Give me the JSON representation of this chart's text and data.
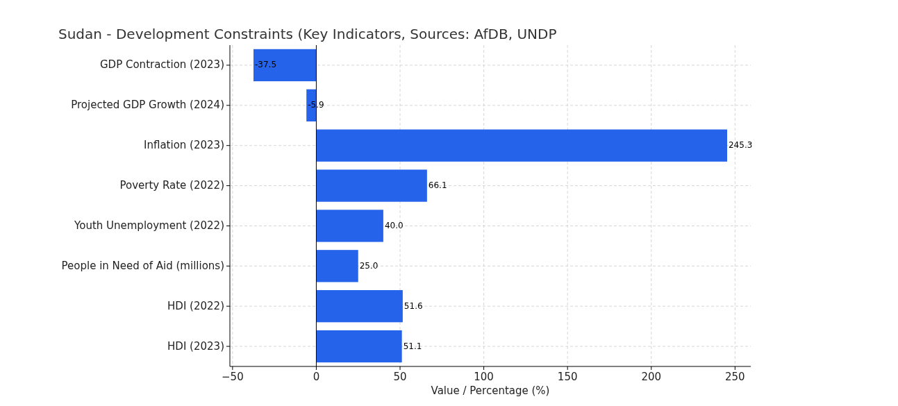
{
  "chart_data": {
    "type": "bar",
    "orientation": "horizontal",
    "title": "Sudan - Development Constraints (Key Indicators, Sources: AfDB, UNDP",
    "xlabel": "Value / Percentage (%)",
    "categories": [
      "GDP Contraction (2023)",
      "Projected GDP Growth (2024)",
      "Inflation (2023)",
      "Poverty Rate (2022)",
      "Youth Unemployment (2022)",
      "People in Need of Aid (millions)",
      "HDI (2022)",
      "HDI (2023)"
    ],
    "values": [
      -37.5,
      -5.9,
      245.3,
      66.1,
      40.0,
      25.0,
      51.6,
      51.1
    ],
    "value_labels": [
      "-37.5",
      "-5.9",
      "245.3",
      "66.1",
      "40.0",
      "25.0",
      "51.6",
      "51.1"
    ],
    "color": "#2563eb",
    "xlim": [
      -51.6,
      259.4
    ],
    "xticks": [
      {
        "value": -50,
        "label": "−50"
      },
      0,
      50,
      100,
      150,
      200,
      250
    ],
    "grid": true,
    "ref_lines": [
      {
        "axis": "x",
        "value": 0,
        "color": "#000000"
      }
    ]
  }
}
